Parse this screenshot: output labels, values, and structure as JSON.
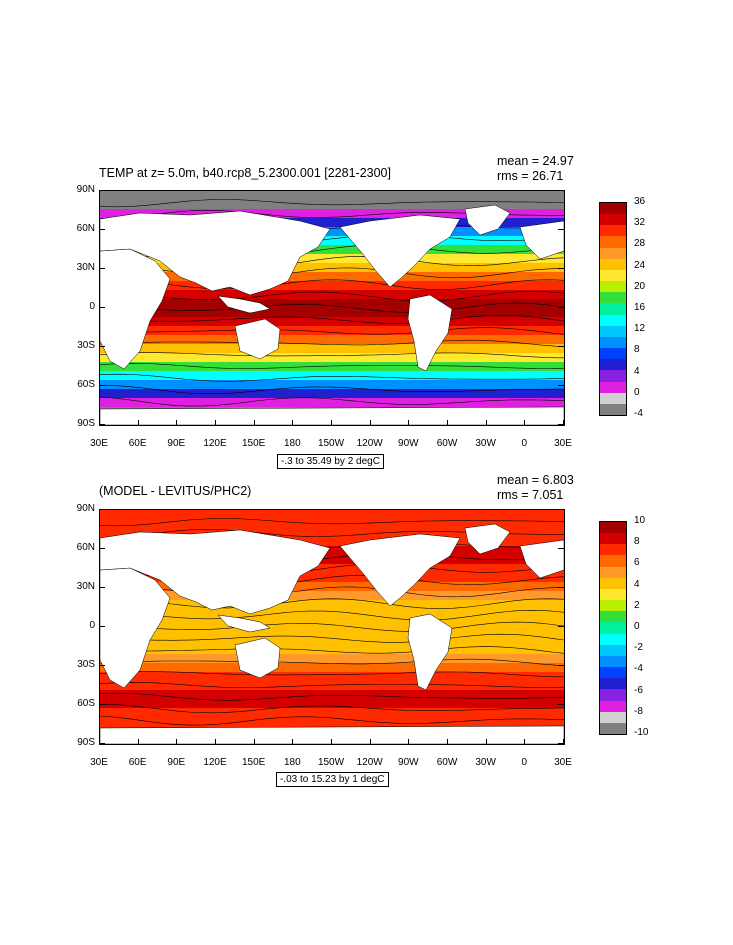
{
  "panels": [
    {
      "title": "TEMP at z=   5.0m, b40.rcp8_5.2300.001 [2281-2300]",
      "mean": "mean = 24.97",
      "rms": "rms = 26.71",
      "range_label": "-.3 to 35.49 by 2 degC",
      "y_ticks": [
        "90N",
        "60N",
        "30N",
        "0",
        "30S",
        "60S",
        "90S"
      ],
      "x_ticks": [
        "30E",
        "60E",
        "90E",
        "120E",
        "150E",
        "180",
        "150W",
        "120W",
        "90W",
        "60W",
        "30W",
        "0",
        "30E"
      ],
      "colorbar_labels": [
        "36",
        "32",
        "28",
        "24",
        "20",
        "16",
        "12",
        "8",
        "4",
        "0",
        "-4"
      ],
      "colorbar_colors": [
        "#a50000",
        "#d40000",
        "#ff2a00",
        "#ff6a00",
        "#ff9a2a",
        "#ffc000",
        "#ffe830",
        "#b8f000",
        "#33e03a",
        "#00f0a0",
        "#00ffff",
        "#00c8ff",
        "#0090ff",
        "#0040ff",
        "#2020d0",
        "#8a20e0",
        "#e020e0",
        "#d0d0d0",
        "#808080"
      ]
    },
    {
      "title": "(MODEL - LEVITUS/PHC2)",
      "mean": "mean = 6.803",
      "rms": "rms = 7.051",
      "range_label": "-.03 to 15.23 by 1 degC",
      "y_ticks": [
        "90N",
        "60N",
        "30N",
        "0",
        "30S",
        "60S",
        "90S"
      ],
      "x_ticks": [
        "30E",
        "60E",
        "90E",
        "120E",
        "150E",
        "180",
        "150W",
        "120W",
        "90W",
        "60W",
        "30W",
        "0",
        "30E"
      ],
      "colorbar_labels": [
        "10",
        "8",
        "6",
        "4",
        "2",
        "0",
        "-2",
        "-4",
        "-6",
        "-8",
        "-10"
      ],
      "colorbar_colors": [
        "#a50000",
        "#d40000",
        "#ff2a00",
        "#ff6a00",
        "#ff9a2a",
        "#ffc000",
        "#ffe830",
        "#b8f000",
        "#33e03a",
        "#00f0a0",
        "#00ffff",
        "#00c8ff",
        "#0090ff",
        "#0040ff",
        "#2020d0",
        "#8a20e0",
        "#e020e0",
        "#d0d0d0",
        "#808080"
      ]
    }
  ],
  "colors": {
    "land": "#ffffff",
    "contour": "#000000"
  }
}
